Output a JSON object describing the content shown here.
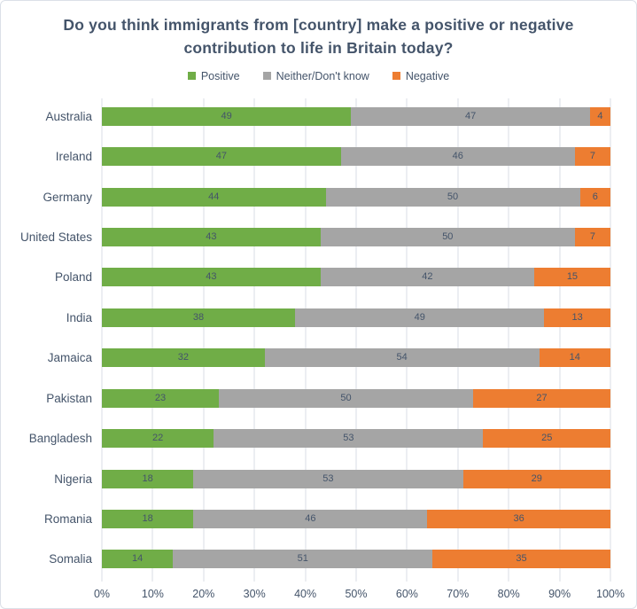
{
  "chart_data": {
    "type": "bar",
    "orientation": "horizontal",
    "stacked": true,
    "title": "Do you think immigrants from [country] make a positive or negative contribution to life in Britain today?",
    "categories": [
      "Australia",
      "Ireland",
      "Germany",
      "United States",
      "Poland",
      "India",
      "Jamaica",
      "Pakistan",
      "Bangladesh",
      "Nigeria",
      "Romania",
      "Somalia"
    ],
    "series": [
      {
        "name": "Positive",
        "color": "#70AD47",
        "values": [
          49,
          47,
          44,
          43,
          43,
          38,
          32,
          23,
          22,
          18,
          18,
          14
        ]
      },
      {
        "name": "Neither/Don't know",
        "color": "#A5A5A5",
        "values": [
          47,
          46,
          50,
          50,
          42,
          49,
          54,
          50,
          53,
          53,
          46,
          51
        ]
      },
      {
        "name": "Negative",
        "color": "#ED7D31",
        "values": [
          4,
          7,
          6,
          7,
          15,
          13,
          14,
          27,
          25,
          29,
          36,
          35
        ]
      }
    ],
    "x_axis": {
      "min": 0,
      "max": 100,
      "tick_step": 10,
      "tick_labels": [
        "0%",
        "10%",
        "20%",
        "30%",
        "40%",
        "50%",
        "60%",
        "70%",
        "80%",
        "90%",
        "100%"
      ]
    },
    "legend_position": "top",
    "grid": "vertical",
    "data_labels": "inside-center",
    "colors": {
      "title_text": "#44546A",
      "axis_text": "#44546A",
      "data_label_text": "#44546A",
      "gridline": "#D9DDE5",
      "frame_border": "#DBE0E8",
      "background": "#FFFFFF"
    }
  }
}
